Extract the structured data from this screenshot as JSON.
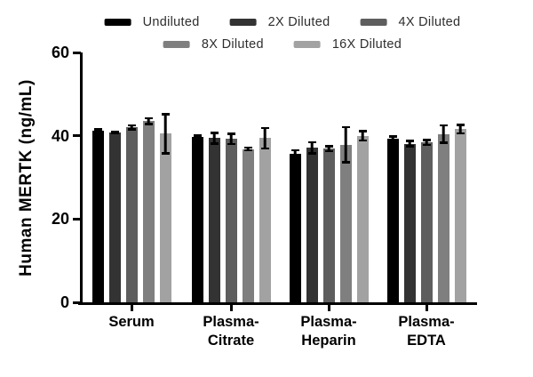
{
  "chart_data": {
    "type": "bar",
    "title": "",
    "xlabel": "",
    "ylabel": "Human MERTK (ng/mL)",
    "ylim": [
      0,
      60
    ],
    "yticks": [
      0,
      20,
      40,
      60
    ],
    "grid": false,
    "legend_position": "top",
    "legend_rows": [
      [
        0,
        1,
        2
      ],
      [
        3,
        4
      ]
    ],
    "categories": [
      "Serum",
      "Plasma-\nCitrate",
      "Plasma-\nHeparin",
      "Plasma-\nEDTA"
    ],
    "series": [
      {
        "name": "Undiluted",
        "color": "#000000",
        "values": [
          41.2,
          39.8,
          35.6,
          39.3
        ],
        "errors": [
          0.6,
          0.5,
          1.2,
          0.8
        ]
      },
      {
        "name": "2X Diluted",
        "color": "#333333",
        "values": [
          40.8,
          39.4,
          37.1,
          38.1
        ],
        "errors": [
          0.5,
          1.6,
          1.6,
          0.9
        ]
      },
      {
        "name": "4X Diluted",
        "color": "#5e5e5e",
        "values": [
          42.0,
          39.2,
          36.9,
          38.4
        ],
        "errors": [
          0.8,
          1.5,
          0.9,
          0.9
        ]
      },
      {
        "name": "8X Diluted",
        "color": "#7f7f7f",
        "values": [
          43.5,
          36.8,
          37.8,
          40.4
        ],
        "errors": [
          1.0,
          0.6,
          4.5,
          2.4
        ]
      },
      {
        "name": "16X Diluted",
        "color": "#a2a2a2",
        "values": [
          40.5,
          39.4,
          40.0,
          41.6
        ],
        "errors": [
          5.0,
          2.7,
          1.4,
          1.3
        ]
      }
    ],
    "units": "ng/mL"
  }
}
